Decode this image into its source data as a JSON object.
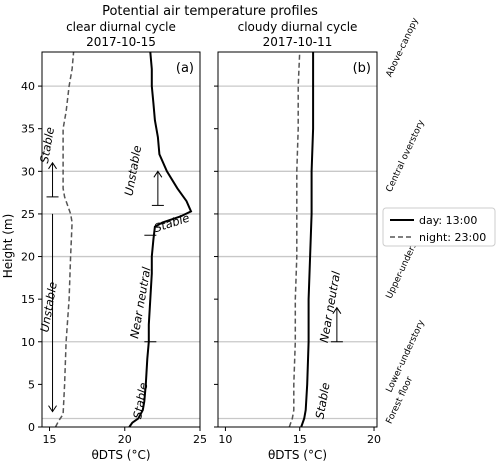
{
  "chart_data": {
    "type": "line",
    "title": "Potential air temperature profiles",
    "ylabel": "Height (m)",
    "ylim": [
      0,
      44
    ],
    "yticks": [
      0,
      5,
      10,
      15,
      20,
      25,
      30,
      35,
      40
    ],
    "grid_heights": [
      1,
      10,
      20,
      25,
      30,
      40
    ],
    "legend": {
      "placement": "right",
      "entries": [
        {
          "label": "day: 13:00",
          "style": "solid",
          "color": "#000000"
        },
        {
          "label": "night: 23:00",
          "style": "dashed",
          "color": "#555555"
        }
      ]
    },
    "zones": [
      {
        "label": "Above-canopy",
        "y": 41
      },
      {
        "label": "Central overstory",
        "y": 27.5
      },
      {
        "label": "Upper-understory",
        "y": 15
      },
      {
        "label": "Lower-understory",
        "y": 4
      },
      {
        "label": "Forest floor",
        "y": 0.3
      }
    ],
    "panels": [
      {
        "title_line1": "clear diurnal cycle",
        "title_line2": "2017-10-15",
        "letter": "(a)",
        "xlabel": "θDTS (°C)",
        "xlim": [
          14.5,
          25
        ],
        "xticks": [
          15,
          20,
          25
        ],
        "series": [
          {
            "name": "day: 13:00",
            "points": [
              [
                20.3,
                0
              ],
              [
                20.5,
                0.5
              ],
              [
                20.9,
                1
              ],
              [
                21.2,
                2
              ],
              [
                21.3,
                3
              ],
              [
                21.4,
                5
              ],
              [
                21.5,
                8
              ],
              [
                21.6,
                10
              ],
              [
                21.6,
                12
              ],
              [
                21.7,
                15
              ],
              [
                21.8,
                18
              ],
              [
                21.8,
                20
              ],
              [
                21.9,
                22
              ],
              [
                22.0,
                23.5
              ],
              [
                22.5,
                24
              ],
              [
                23.7,
                24.7
              ],
              [
                24.4,
                25.3
              ],
              [
                24.1,
                26.5
              ],
              [
                23.5,
                28
              ],
              [
                22.8,
                30
              ],
              [
                22.3,
                32
              ],
              [
                22.2,
                34
              ],
              [
                22.0,
                36
              ],
              [
                21.9,
                38
              ],
              [
                21.8,
                40
              ],
              [
                21.8,
                42
              ],
              [
                21.7,
                44
              ]
            ]
          },
          {
            "name": "night: 23:00",
            "points": [
              [
                15.4,
                0
              ],
              [
                15.6,
                0.7
              ],
              [
                15.9,
                1.5
              ],
              [
                16.0,
                5
              ],
              [
                16.1,
                10
              ],
              [
                16.3,
                15
              ],
              [
                16.4,
                20
              ],
              [
                16.5,
                24
              ],
              [
                16.4,
                25
              ],
              [
                16.2,
                26
              ],
              [
                16.0,
                27
              ],
              [
                15.9,
                28
              ],
              [
                15.9,
                30
              ],
              [
                15.9,
                33
              ],
              [
                15.9,
                35
              ],
              [
                16.1,
                37
              ],
              [
                16.3,
                40
              ],
              [
                16.5,
                42
              ],
              [
                16.6,
                44
              ]
            ]
          }
        ],
        "annotations": [
          {
            "text": "Stable",
            "x": 15.1,
            "y": 33
          },
          {
            "text": "Unstable",
            "x": 15.2,
            "y": 14
          },
          {
            "text": "Unstable",
            "x": 20.8,
            "y": 30
          },
          {
            "text": "Stable",
            "x": 23.2,
            "y": 23.5
          },
          {
            "text": "Near neutral",
            "x": 21.3,
            "y": 14.5
          },
          {
            "text": "Stable",
            "x": 21.3,
            "y": 3
          }
        ]
      },
      {
        "title_line1": "cloudy diurnal cycle",
        "title_line2": "2017-10-11",
        "letter": "(b)",
        "xlabel": "θDTS (°C)",
        "xlim": [
          9.5,
          20.2
        ],
        "xticks": [
          10,
          15,
          20
        ],
        "series": [
          {
            "name": "day: 13:00",
            "points": [
              [
                15.1,
                0
              ],
              [
                15.3,
                1
              ],
              [
                15.4,
                2
              ],
              [
                15.5,
                5
              ],
              [
                15.6,
                10
              ],
              [
                15.6,
                15
              ],
              [
                15.7,
                20
              ],
              [
                15.8,
                25
              ],
              [
                15.8,
                30
              ],
              [
                15.9,
                35
              ],
              [
                15.9,
                40
              ],
              [
                15.9,
                44
              ]
            ]
          },
          {
            "name": "night: 23:00",
            "points": [
              [
                14.3,
                0
              ],
              [
                14.5,
                1
              ],
              [
                14.6,
                2
              ],
              [
                14.6,
                5
              ],
              [
                14.7,
                10
              ],
              [
                14.7,
                15
              ],
              [
                14.8,
                20
              ],
              [
                14.8,
                25
              ],
              [
                14.8,
                30
              ],
              [
                14.9,
                35
              ],
              [
                14.9,
                40
              ],
              [
                15.0,
                44
              ]
            ]
          }
        ],
        "annotations": [
          {
            "text": "Near neutral",
            "x": 17.3,
            "y": 14
          },
          {
            "text": "Stable",
            "x": 16.8,
            "y": 3
          }
        ]
      }
    ]
  }
}
